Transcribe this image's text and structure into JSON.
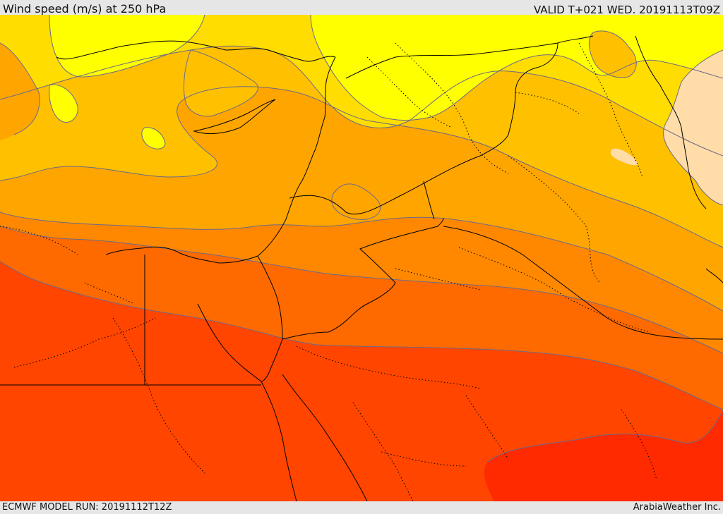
{
  "header": {
    "title": "Wind speed (m/s) at 250 hPa",
    "valid": "VALID T+021 WED. 20191113T09Z"
  },
  "footer": {
    "model_run": "ECMWF MODEL RUN: 20191112T12Z",
    "credit": "ArabiaWeather Inc."
  },
  "colors": {
    "band_1": "#ffff00",
    "band_2": "#ffdd00",
    "band_3": "#ffc000",
    "band_4": "#ffa500",
    "band_5": "#ff8800",
    "band_6": "#ff6a00",
    "band_7": "#ff4500",
    "band_8": "#ff2a00",
    "low_speed": "#ffdca8",
    "contour": "#6a6a8a",
    "border": "#000000"
  }
}
